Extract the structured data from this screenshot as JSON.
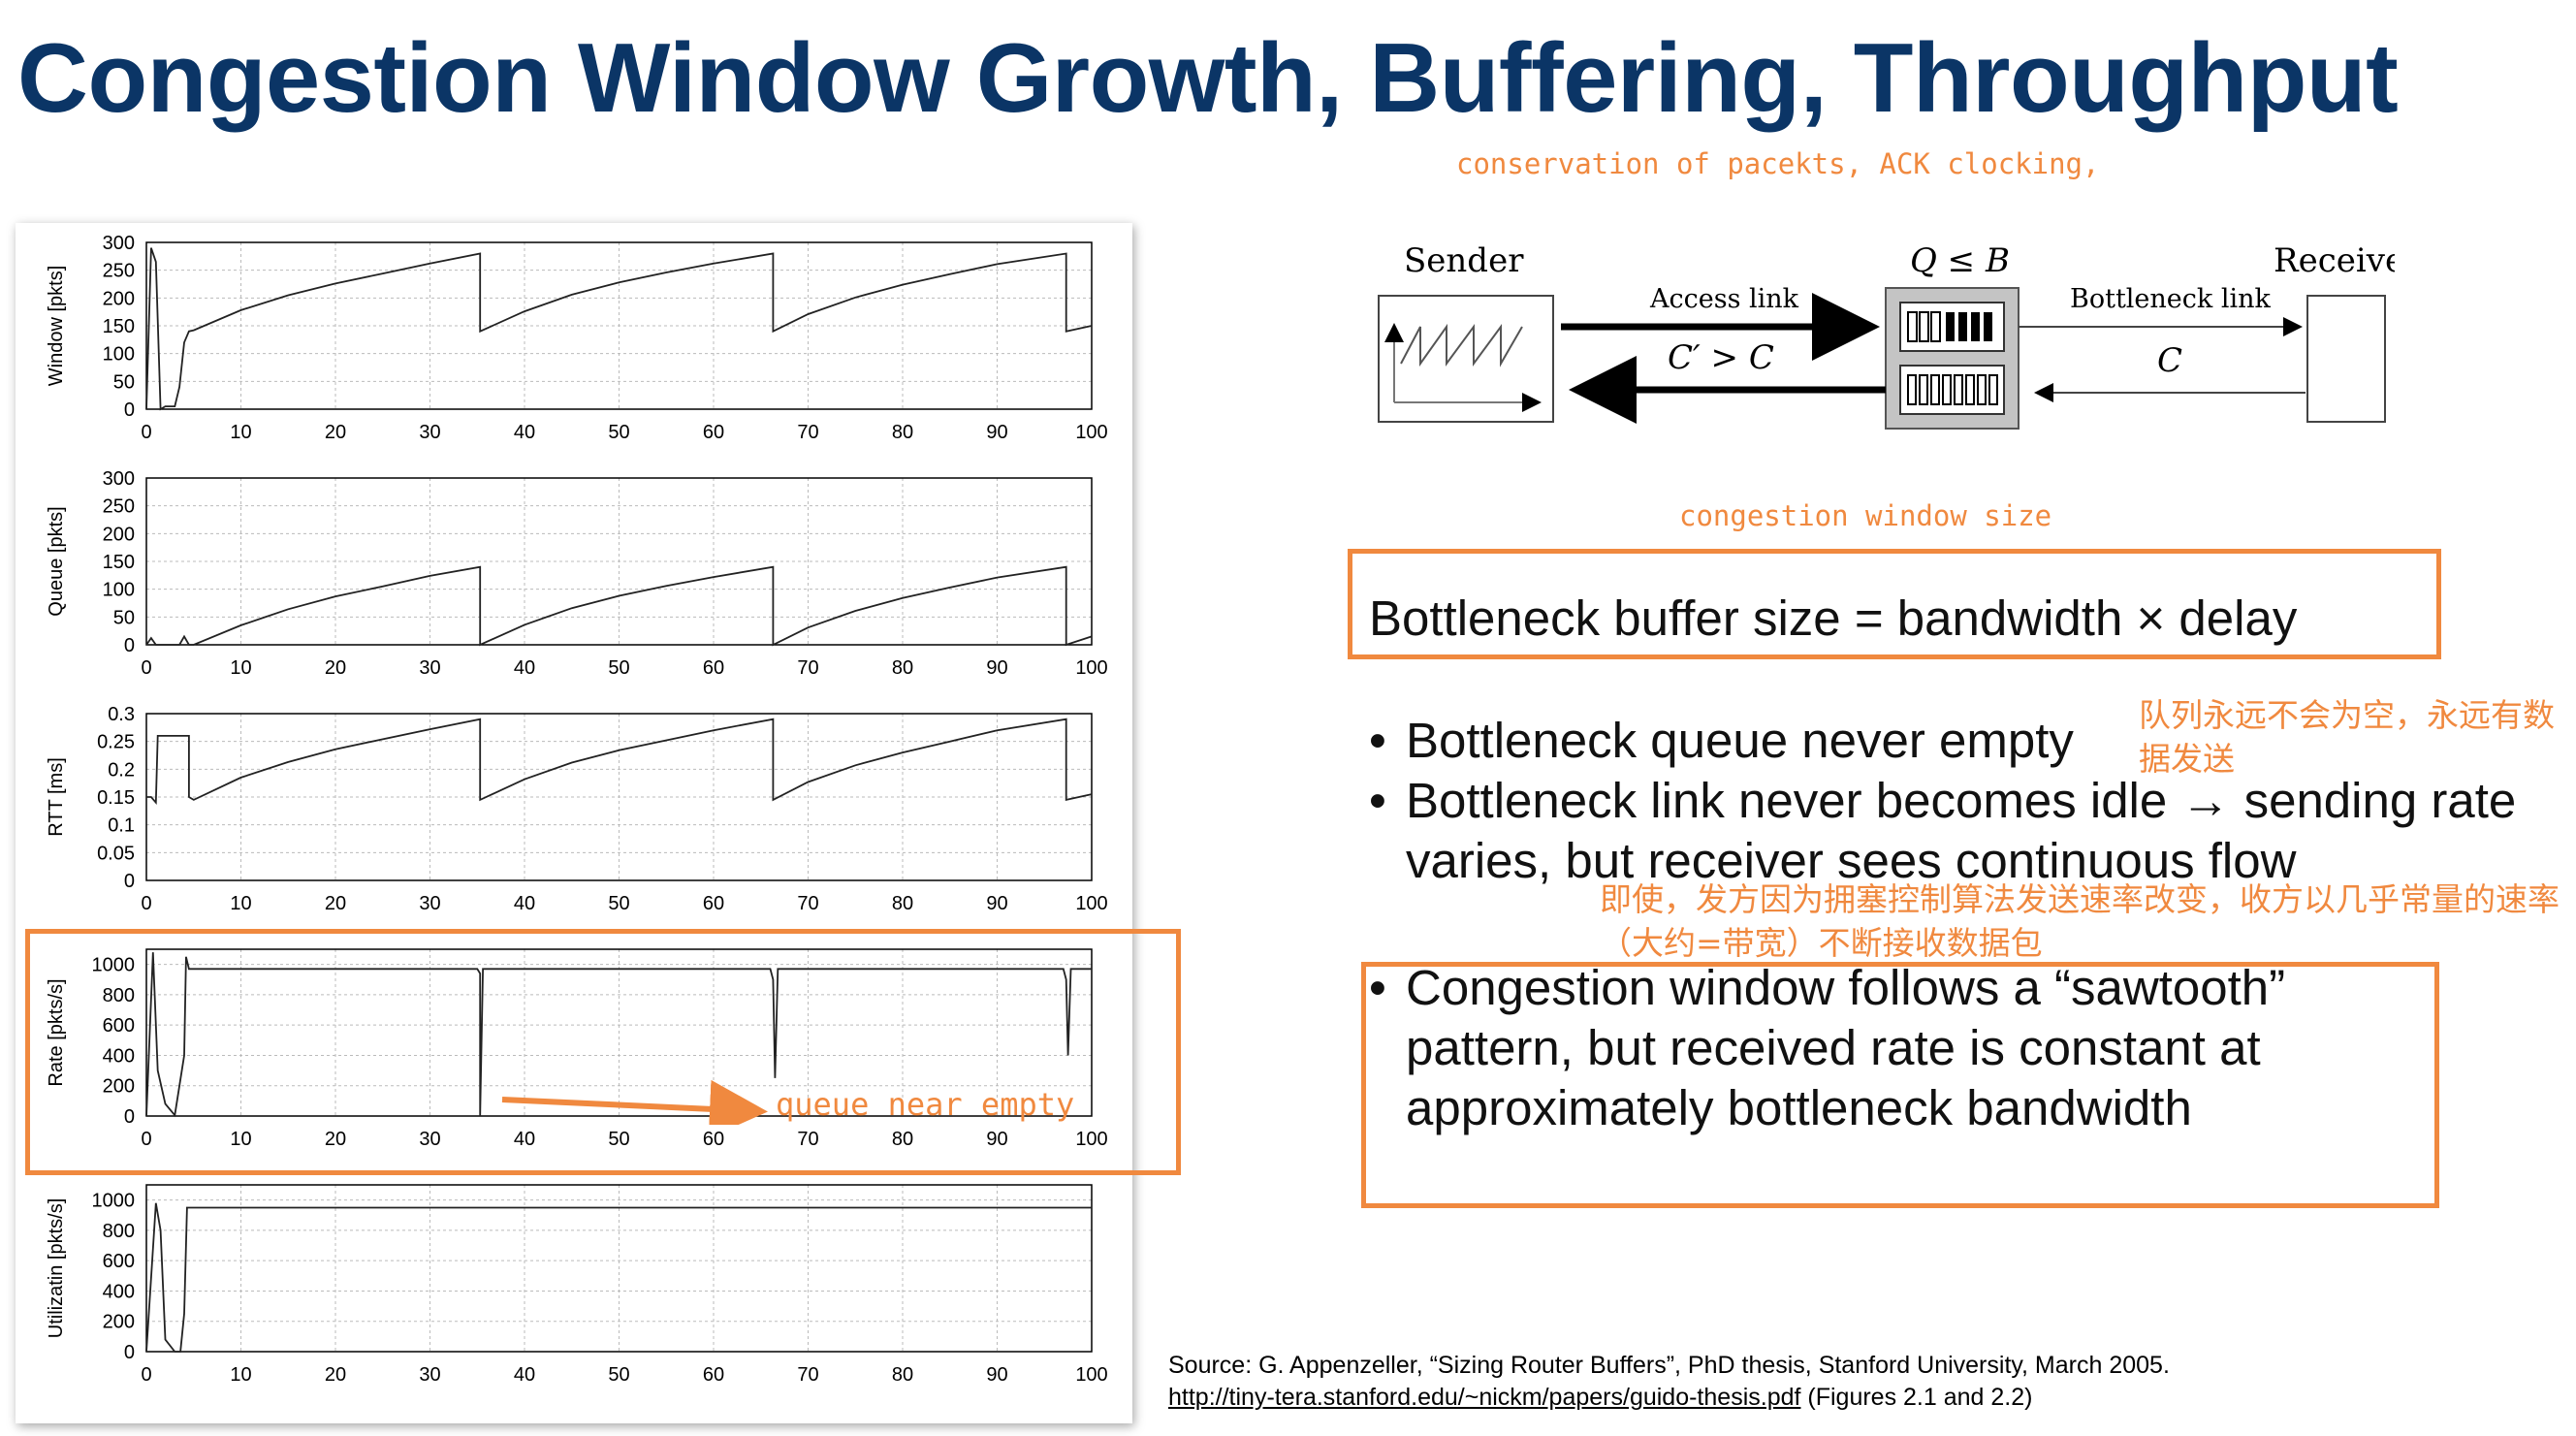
{
  "title": "Congestion Window Growth, Buffering, Throughput",
  "annotations": {
    "conservation": "conservation of pacekts, ACK clocking,",
    "cwnd_size": "congestion window size",
    "queue_never_empty_cn": "队列永远不会为空，永远有数据发送",
    "receiver_rate_cn": "即使，发方因为拥塞控制算法发送速率改变，收方以几乎常量的速率（大约=带宽）不断接收数据包",
    "queue_near_empty": "queue near empty"
  },
  "diagram": {
    "sender_label": "Sender",
    "receiver_label": "Receiver",
    "queue_label": "Q ≤ B",
    "access_link_label": "Access link",
    "access_rate": "C′ > C",
    "bottleneck_link_label": "Bottleneck link",
    "bottleneck_rate": "C"
  },
  "formula": "Bottleneck buffer size = bandwidth × delay",
  "bullets": [
    "Bottleneck queue never empty",
    "Bottleneck link never becomes idle → sending rate varies, but receiver sees continuous flow",
    "Congestion window follows a “sawtooth” pattern, but received rate is constant at approximately bottleneck bandwidth"
  ],
  "source": {
    "line1": "Source: G. Appenzeller, “Sizing Router Buffers”, PhD thesis, Stanford University, March 2005.",
    "link": "http://tiny-tera.stanford.edu/~nickm/papers/guido-thesis.pdf",
    "suffix": " (Figures 2.1 and 2.2)"
  },
  "colors": {
    "title": "#0b3566",
    "annotation": "#f0893f",
    "plot_line": "#222222",
    "grid": "#bbbbbb"
  },
  "chart_data": [
    {
      "type": "line",
      "ylabel": "Window [pkts]",
      "xlim": [
        0,
        100
      ],
      "ylim": [
        0,
        300
      ],
      "xticks": [
        0,
        10,
        20,
        30,
        40,
        50,
        60,
        70,
        80,
        90,
        100
      ],
      "yticks": [
        0,
        50,
        100,
        150,
        200,
        250,
        300
      ],
      "series": [
        {
          "x": [
            0,
            0.5,
            1,
            1.5,
            2,
            2.5,
            3,
            3.5,
            4,
            4.5,
            5,
            10,
            15,
            20,
            25,
            30,
            35.3,
            35.3,
            40,
            45,
            50,
            55,
            60,
            66.3,
            66.3,
            70,
            75,
            80,
            85,
            90,
            97.3,
            97.3,
            100
          ],
          "y": [
            0,
            290,
            265,
            0,
            5,
            5,
            5,
            40,
            120,
            140,
            142,
            178,
            205,
            226,
            244,
            262,
            280,
            140,
            176,
            206,
            228,
            246,
            262,
            280,
            140,
            171,
            201,
            224,
            243,
            261,
            280,
            140,
            150
          ]
        }
      ]
    },
    {
      "type": "line",
      "ylabel": "Queue [pkts]",
      "xlim": [
        0,
        100
      ],
      "ylim": [
        0,
        300
      ],
      "xticks": [
        0,
        10,
        20,
        30,
        40,
        50,
        60,
        70,
        80,
        90,
        100
      ],
      "yticks": [
        0,
        50,
        100,
        150,
        200,
        250,
        300
      ],
      "series": [
        {
          "x": [
            0,
            0.5,
            1,
            1.5,
            3.5,
            4,
            4.5,
            5,
            10,
            15,
            20,
            25,
            30,
            35.3,
            35.3,
            40,
            45,
            50,
            55,
            60,
            66.3,
            66.3,
            70,
            75,
            80,
            85,
            90,
            97.3,
            97.3,
            100
          ],
          "y": [
            0,
            12,
            0,
            0,
            0,
            15,
            0,
            0,
            35,
            64,
            87,
            105,
            124,
            140,
            0,
            36,
            66,
            88,
            106,
            122,
            140,
            0,
            31,
            61,
            84,
            103,
            121,
            140,
            0,
            15
          ]
        }
      ]
    },
    {
      "type": "line",
      "ylabel": "RTT [ms]",
      "xlim": [
        0,
        100
      ],
      "ylim": [
        0,
        0.3
      ],
      "xticks": [
        0,
        10,
        20,
        30,
        40,
        50,
        60,
        70,
        80,
        90,
        100
      ],
      "yticks": [
        0,
        0.05,
        0.1,
        0.15,
        0.2,
        0.25,
        0.3
      ],
      "series": [
        {
          "x": [
            0,
            0.5,
            1,
            1.2,
            4.5,
            4.5,
            5,
            10,
            15,
            20,
            25,
            30,
            35.3,
            35.3,
            40,
            45,
            50,
            55,
            60,
            66.3,
            66.3,
            70,
            75,
            80,
            85,
            90,
            97.3,
            97.3,
            100
          ],
          "y": [
            0.15,
            0.15,
            0.14,
            0.26,
            0.26,
            0.15,
            0.145,
            0.185,
            0.213,
            0.236,
            0.254,
            0.272,
            0.29,
            0.145,
            0.182,
            0.212,
            0.234,
            0.252,
            0.27,
            0.29,
            0.145,
            0.177,
            0.207,
            0.23,
            0.25,
            0.27,
            0.29,
            0.145,
            0.155
          ]
        }
      ]
    },
    {
      "type": "line",
      "ylabel": "Rate [pkts/s]",
      "xlim": [
        0,
        100
      ],
      "ylim": [
        0,
        1100
      ],
      "xticks": [
        0,
        10,
        20,
        30,
        40,
        50,
        60,
        70,
        80,
        90,
        100
      ],
      "yticks": [
        0,
        200,
        400,
        600,
        800,
        1000
      ],
      "series": [
        {
          "x": [
            0,
            0.7,
            1.2,
            2,
            3,
            3.5,
            4,
            4.2,
            4.5,
            35,
            35.3,
            35.3,
            35.6,
            66,
            66.3,
            66.5,
            66.8,
            97,
            97.3,
            97.5,
            97.8,
            100
          ],
          "y": [
            0,
            1080,
            300,
            80,
            5,
            200,
            400,
            1050,
            970,
            970,
            940,
            0,
            970,
            970,
            900,
            250,
            970,
            970,
            900,
            400,
            970,
            970
          ]
        }
      ]
    },
    {
      "type": "line",
      "ylabel": "Utilizatin [pkts/s]",
      "xlim": [
        0,
        100
      ],
      "ylim": [
        0,
        1100
      ],
      "xticks": [
        0,
        10,
        20,
        30,
        40,
        50,
        60,
        70,
        80,
        90,
        100
      ],
      "yticks": [
        0,
        200,
        400,
        600,
        800,
        1000
      ],
      "series": [
        {
          "x": [
            0,
            1,
            1.5,
            2,
            3,
            3.6,
            4,
            4.3,
            100
          ],
          "y": [
            0,
            980,
            800,
            80,
            0,
            0,
            250,
            950,
            950
          ]
        }
      ]
    }
  ]
}
